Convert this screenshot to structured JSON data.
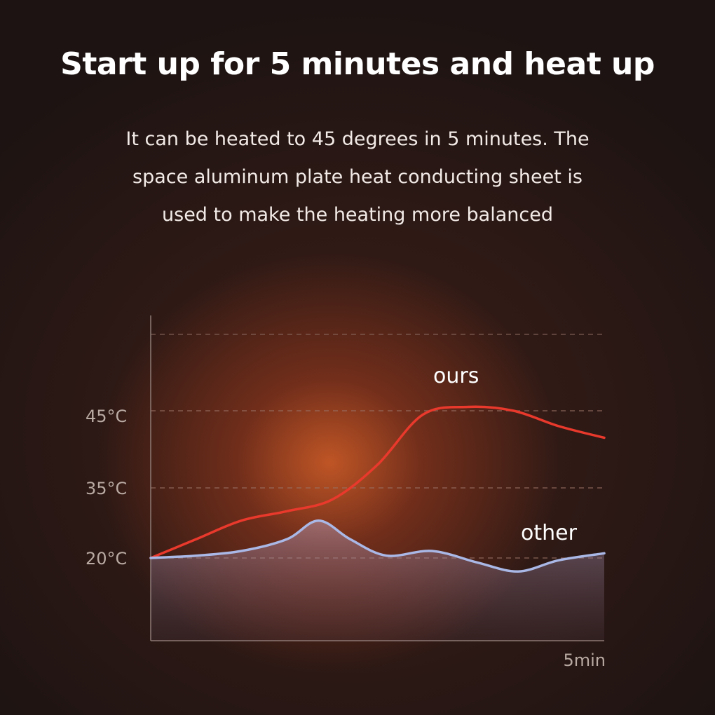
{
  "header": {
    "title": "Start up for 5 minutes and heat up",
    "subtitle_lines": [
      "It can be heated to 45 degrees in 5 minutes. The",
      "space aluminum plate heat conducting sheet is",
      "used to make the heating more balanced"
    ]
  },
  "chart_data": {
    "type": "line",
    "title": "",
    "xlabel": "",
    "ylabel": "",
    "x_tick_labels": [
      "5min"
    ],
    "y_tick_labels": [
      "20°C",
      "35°C",
      "45°C"
    ],
    "y_ticks": [
      20,
      35,
      45
    ],
    "x_unit": "min",
    "xlim": [
      0,
      5
    ],
    "grid": true,
    "series": [
      {
        "name": "ours",
        "color": "#e8392c",
        "x": [
          0,
          0.5,
          1.0,
          1.5,
          2.0,
          2.5,
          3.0,
          3.5,
          4.0,
          4.5,
          5.0
        ],
        "y": [
          20,
          24,
          28,
          30,
          32.5,
          38,
          44.5,
          45.5,
          45,
          43,
          41.5
        ]
      },
      {
        "name": "other",
        "color": "#a9b8e6",
        "x": [
          0,
          0.5,
          1.0,
          1.5,
          1.85,
          2.2,
          2.6,
          3.1,
          3.6,
          4.05,
          4.5,
          5.0
        ],
        "y": [
          20,
          20.5,
          21.5,
          24,
          28,
          24,
          20.5,
          21.5,
          19,
          17,
          19.5,
          21
        ]
      }
    ]
  }
}
